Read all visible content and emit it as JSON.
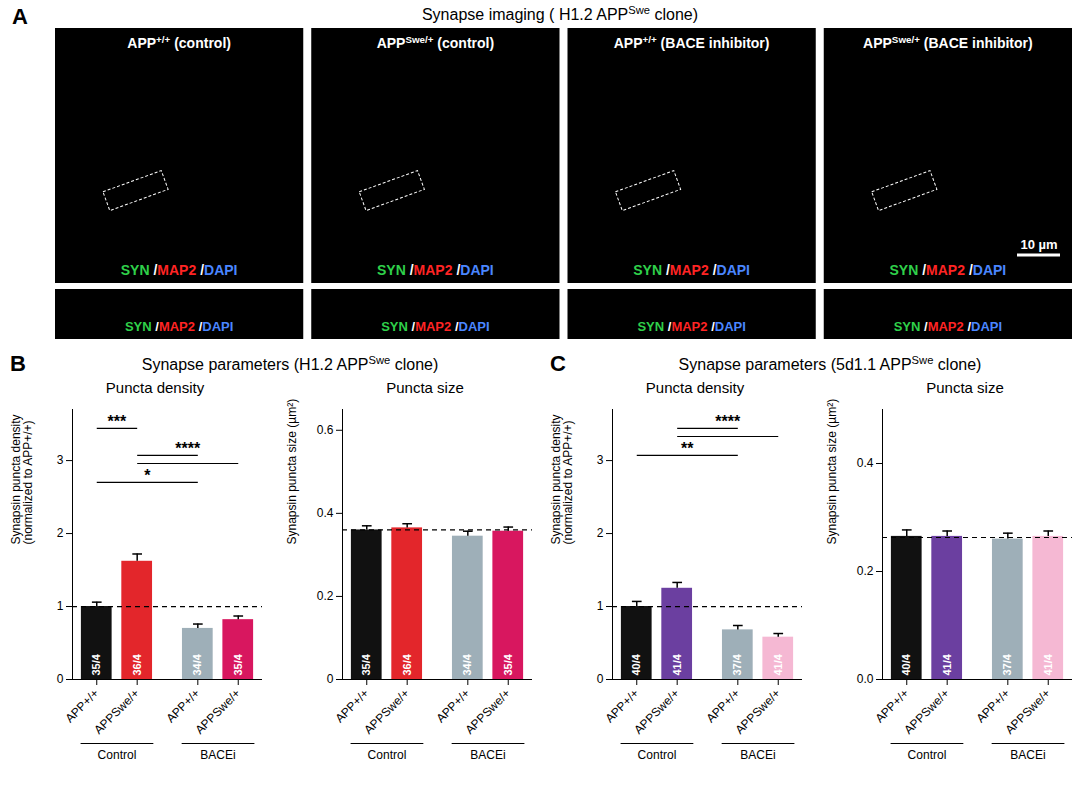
{
  "panel_A": {
    "letter": "A",
    "title": "Synapse imaging ( H1.2 APPSwe clone)",
    "images": [
      "APP+/+ (control)",
      "APPSwe/+ (control)",
      "APP+/+ (BACE inhibitor)",
      "APPSwe/+ (BACE inhibitor)"
    ],
    "stains": [
      {
        "name": "SYN",
        "color": "#2fd04a"
      },
      {
        "name": "MAP2",
        "color": "#ff2424"
      },
      {
        "name": "DAPI",
        "color": "#4a86ff"
      }
    ],
    "scale_bar": "10 µm"
  },
  "chart_data": [
    {
      "type": "bar",
      "panel": "B",
      "subtitle": "Synapse parameters (H1.2 APPSwe clone)",
      "title": "Puncta density",
      "ylabel": "Synapsin puncta density\n(normalized to APP+/+)",
      "categories": [
        "APP+/+",
        "APPSwe/+",
        "APP+/+",
        "APPSwe/+"
      ],
      "groups": [
        {
          "label": "Control",
          "from": 0,
          "to": 1
        },
        {
          "label": "BACEi",
          "from": 2,
          "to": 3
        }
      ],
      "values": [
        1.0,
        1.62,
        0.7,
        0.82
      ],
      "errors": [
        0.06,
        0.1,
        0.06,
        0.05
      ],
      "n_labels": [
        "35/4",
        "36/4",
        "34/4",
        "35/4"
      ],
      "colors": [
        "#111111",
        "#e3262b",
        "#9eafb8",
        "#d8175f"
      ],
      "reference_line": 1.0,
      "significance": [
        {
          "label": "***",
          "from": 0,
          "to": [
            1
          ]
        },
        {
          "label": "****",
          "from": 1,
          "to": [
            2,
            3
          ]
        },
        {
          "label": "*",
          "from": 0,
          "to": [
            2
          ]
        }
      ],
      "ylim": [
        0,
        3.7
      ],
      "yticks": [
        0,
        1,
        2,
        3
      ]
    },
    {
      "type": "bar",
      "panel": "B",
      "subtitle": "Synapse parameters (H1.2 APPSwe clone)",
      "title": "Puncta size",
      "ylabel": "Synapsin puncta size (µm²)",
      "categories": [
        "APP+/+",
        "APPSwe/+",
        "APP+/+",
        "APPSwe/+"
      ],
      "groups": [
        {
          "label": "Control",
          "from": 0,
          "to": 1
        },
        {
          "label": "BACEi",
          "from": 2,
          "to": 3
        }
      ],
      "values": [
        0.36,
        0.365,
        0.345,
        0.357
      ],
      "errors": [
        0.01,
        0.01,
        0.012,
        0.01
      ],
      "n_labels": [
        "35/4",
        "36/4",
        "34/4",
        "35/4"
      ],
      "colors": [
        "#111111",
        "#e3262b",
        "#9eafb8",
        "#d8175f"
      ],
      "reference_line": 0.36,
      "ylim": [
        0,
        0.65
      ],
      "yticks": [
        0,
        0.2,
        0.4,
        0.6
      ]
    },
    {
      "type": "bar",
      "panel": "C",
      "subtitle": "Synapse parameters (5d1.1 APPSwe clone)",
      "title": "Puncta density",
      "ylabel": "Synapsin puncta density\n(normalized to APP+/+)",
      "categories": [
        "APP+/+",
        "APPSwe/+",
        "APP+/+",
        "APPSwe/+"
      ],
      "groups": [
        {
          "label": "Control",
          "from": 0,
          "to": 1
        },
        {
          "label": "BACEi",
          "from": 2,
          "to": 3
        }
      ],
      "values": [
        1.0,
        1.25,
        0.68,
        0.58
      ],
      "errors": [
        0.07,
        0.08,
        0.06,
        0.05
      ],
      "n_labels": [
        "40/4",
        "41/4",
        "37/4",
        "41/4"
      ],
      "colors": [
        "#111111",
        "#6b3fa0",
        "#9eafb8",
        "#f5b8d3"
      ],
      "reference_line": 1.0,
      "significance": [
        {
          "label": "****",
          "from": 1,
          "to": [
            2,
            3
          ]
        },
        {
          "label": "**",
          "from": 0,
          "to": [
            2
          ]
        }
      ],
      "ylim": [
        0,
        3.7
      ],
      "yticks": [
        0,
        1,
        2,
        3
      ]
    },
    {
      "type": "bar",
      "panel": "C",
      "subtitle": "Synapse parameters (5d1.1 APPSwe clone)",
      "title": "Puncta size",
      "ylabel": "Synapsin puncta size (µm²)",
      "categories": [
        "APP+/+",
        "APPSwe/+",
        "APP+/+",
        "APPSwe/+"
      ],
      "groups": [
        {
          "label": "Control",
          "from": 0,
          "to": 1
        },
        {
          "label": "BACEi",
          "from": 2,
          "to": 3
        }
      ],
      "values": [
        0.265,
        0.265,
        0.26,
        0.265
      ],
      "errors": [
        0.012,
        0.01,
        0.011,
        0.01
      ],
      "n_labels": [
        "40/4",
        "41/4",
        "37/4",
        "41/4"
      ],
      "colors": [
        "#111111",
        "#6b3fa0",
        "#9eafb8",
        "#f5b8d3"
      ],
      "reference_line": 0.263,
      "ylim": [
        0,
        0.5
      ],
      "yticks": [
        {
          "value": 0,
          "label": "0.0"
        },
        0.2,
        0.4
      ]
    }
  ]
}
